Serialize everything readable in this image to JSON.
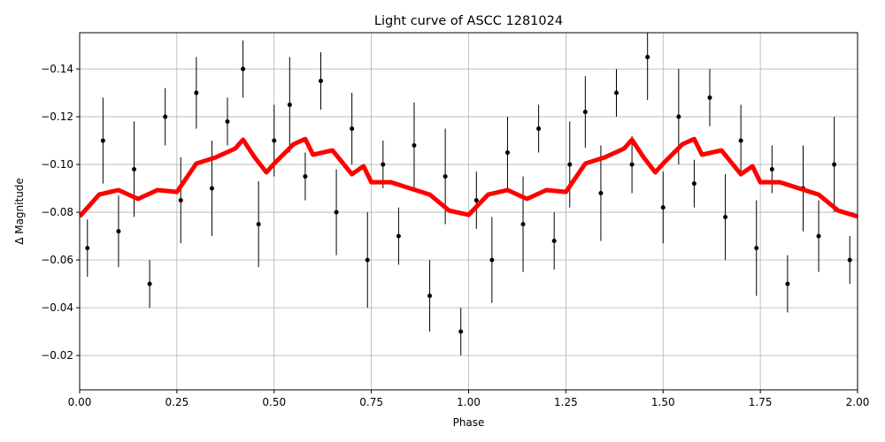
{
  "chart_data": {
    "type": "scatter",
    "title": "Light curve of ASCC 1281024",
    "xlabel": "Phase",
    "ylabel": "Δ Magnitude",
    "xlim": [
      0,
      2
    ],
    "ylim": [
      -0.0056,
      -0.1552
    ],
    "xticks": [
      {
        "value": 0,
        "label": "0.00"
      },
      {
        "value": 0.25,
        "label": "0.25"
      },
      {
        "value": 0.5,
        "label": "0.50"
      },
      {
        "value": 0.75,
        "label": "0.75"
      },
      {
        "value": 1,
        "label": "1.00"
      },
      {
        "value": 1.25,
        "label": "1.25"
      },
      {
        "value": 1.5,
        "label": "1.50"
      },
      {
        "value": 1.75,
        "label": "1.75"
      },
      {
        "value": 2,
        "label": "2.00"
      }
    ],
    "yticks": [
      {
        "value": -0.02,
        "label": "−0.02"
      },
      {
        "value": -0.04,
        "label": "−0.04"
      },
      {
        "value": -0.06,
        "label": "−0.06"
      },
      {
        "value": -0.08,
        "label": "−0.08"
      },
      {
        "value": -0.1,
        "label": "−0.10"
      },
      {
        "value": -0.12,
        "label": "−0.12"
      },
      {
        "value": -0.14,
        "label": "−0.14"
      }
    ],
    "grid": true,
    "points": {
      "color": "#000000",
      "x": [
        0.02,
        0.06,
        0.1,
        0.14,
        0.18,
        0.22,
        0.26,
        0.3,
        0.34,
        0.38,
        0.42,
        0.46,
        0.5,
        0.54,
        0.58,
        0.62,
        0.66,
        0.7,
        0.74,
        0.78,
        0.82,
        0.86,
        0.9,
        0.94,
        0.98,
        1.02,
        1.06,
        1.1,
        1.14,
        1.18,
        1.22,
        1.26,
        1.3,
        1.34,
        1.38,
        1.42,
        1.46,
        1.5,
        1.54,
        1.58,
        1.62,
        1.66,
        1.7,
        1.74,
        1.78,
        1.82,
        1.86,
        1.9,
        1.94,
        1.98
      ],
      "values": [
        -0.065,
        -0.11,
        -0.072,
        -0.098,
        -0.05,
        -0.12,
        -0.085,
        -0.13,
        -0.09,
        -0.118,
        -0.14,
        -0.075,
        -0.11,
        -0.125,
        -0.095,
        -0.135,
        -0.08,
        -0.115,
        -0.06,
        -0.1,
        -0.07,
        -0.108,
        -0.045,
        -0.095,
        -0.03,
        -0.085,
        -0.06,
        -0.105,
        -0.075,
        -0.115,
        -0.068,
        -0.1,
        -0.122,
        -0.088,
        -0.13,
        -0.1,
        -0.145,
        -0.082,
        -0.12,
        -0.092,
        -0.128,
        -0.078,
        -0.11,
        -0.065,
        -0.098,
        -0.05,
        -0.09,
        -0.07,
        -0.1,
        -0.06
      ],
      "errors": [
        0.012,
        0.018,
        0.015,
        0.02,
        0.01,
        0.012,
        0.018,
        0.015,
        0.02,
        0.01,
        0.012,
        0.018,
        0.015,
        0.02,
        0.01,
        0.012,
        0.018,
        0.015,
        0.02,
        0.01,
        0.012,
        0.018,
        0.015,
        0.02,
        0.01,
        0.012,
        0.018,
        0.015,
        0.02,
        0.01,
        0.012,
        0.018,
        0.015,
        0.02,
        0.01,
        0.012,
        0.018,
        0.015,
        0.02,
        0.01,
        0.012,
        0.018,
        0.015,
        0.02,
        0.01,
        0.012,
        0.018,
        0.015,
        0.02,
        0.01
      ]
    },
    "curve": {
      "color": "#ff0000",
      "x": [
        0,
        0.05,
        0.1,
        0.15,
        0.2,
        0.25,
        0.3,
        0.35,
        0.4,
        0.42,
        0.45,
        0.48,
        0.5,
        0.55,
        0.58,
        0.6,
        0.65,
        0.7,
        0.73,
        0.75,
        0.8,
        0.85,
        0.9,
        0.95,
        1,
        1.05,
        1.1,
        1.15,
        1.2,
        1.25,
        1.3,
        1.35,
        1.4,
        1.42,
        1.45,
        1.48,
        1.5,
        1.55,
        1.58,
        1.6,
        1.65,
        1.7,
        1.73,
        1.75,
        1.8,
        1.85,
        1.9,
        1.95,
        2
      ],
      "values": [
        -0.0782,
        -0.0874,
        -0.0893,
        -0.0856,
        -0.0893,
        -0.0885,
        -0.1004,
        -0.103,
        -0.1067,
        -0.1104,
        -0.103,
        -0.0967,
        -0.1004,
        -0.1085,
        -0.1107,
        -0.1041,
        -0.1059,
        -0.0959,
        -0.0993,
        -0.0926,
        -0.0926,
        -0.09,
        -0.0874,
        -0.0807,
        -0.0789,
        -0.0874,
        -0.0893,
        -0.0856,
        -0.0893,
        -0.0885,
        -0.1004,
        -0.103,
        -0.1067,
        -0.1104,
        -0.103,
        -0.0967,
        -0.1004,
        -0.1085,
        -0.1107,
        -0.1041,
        -0.1059,
        -0.0959,
        -0.0993,
        -0.0926,
        -0.0926,
        -0.09,
        -0.0874,
        -0.0807,
        -0.0782
      ]
    }
  }
}
